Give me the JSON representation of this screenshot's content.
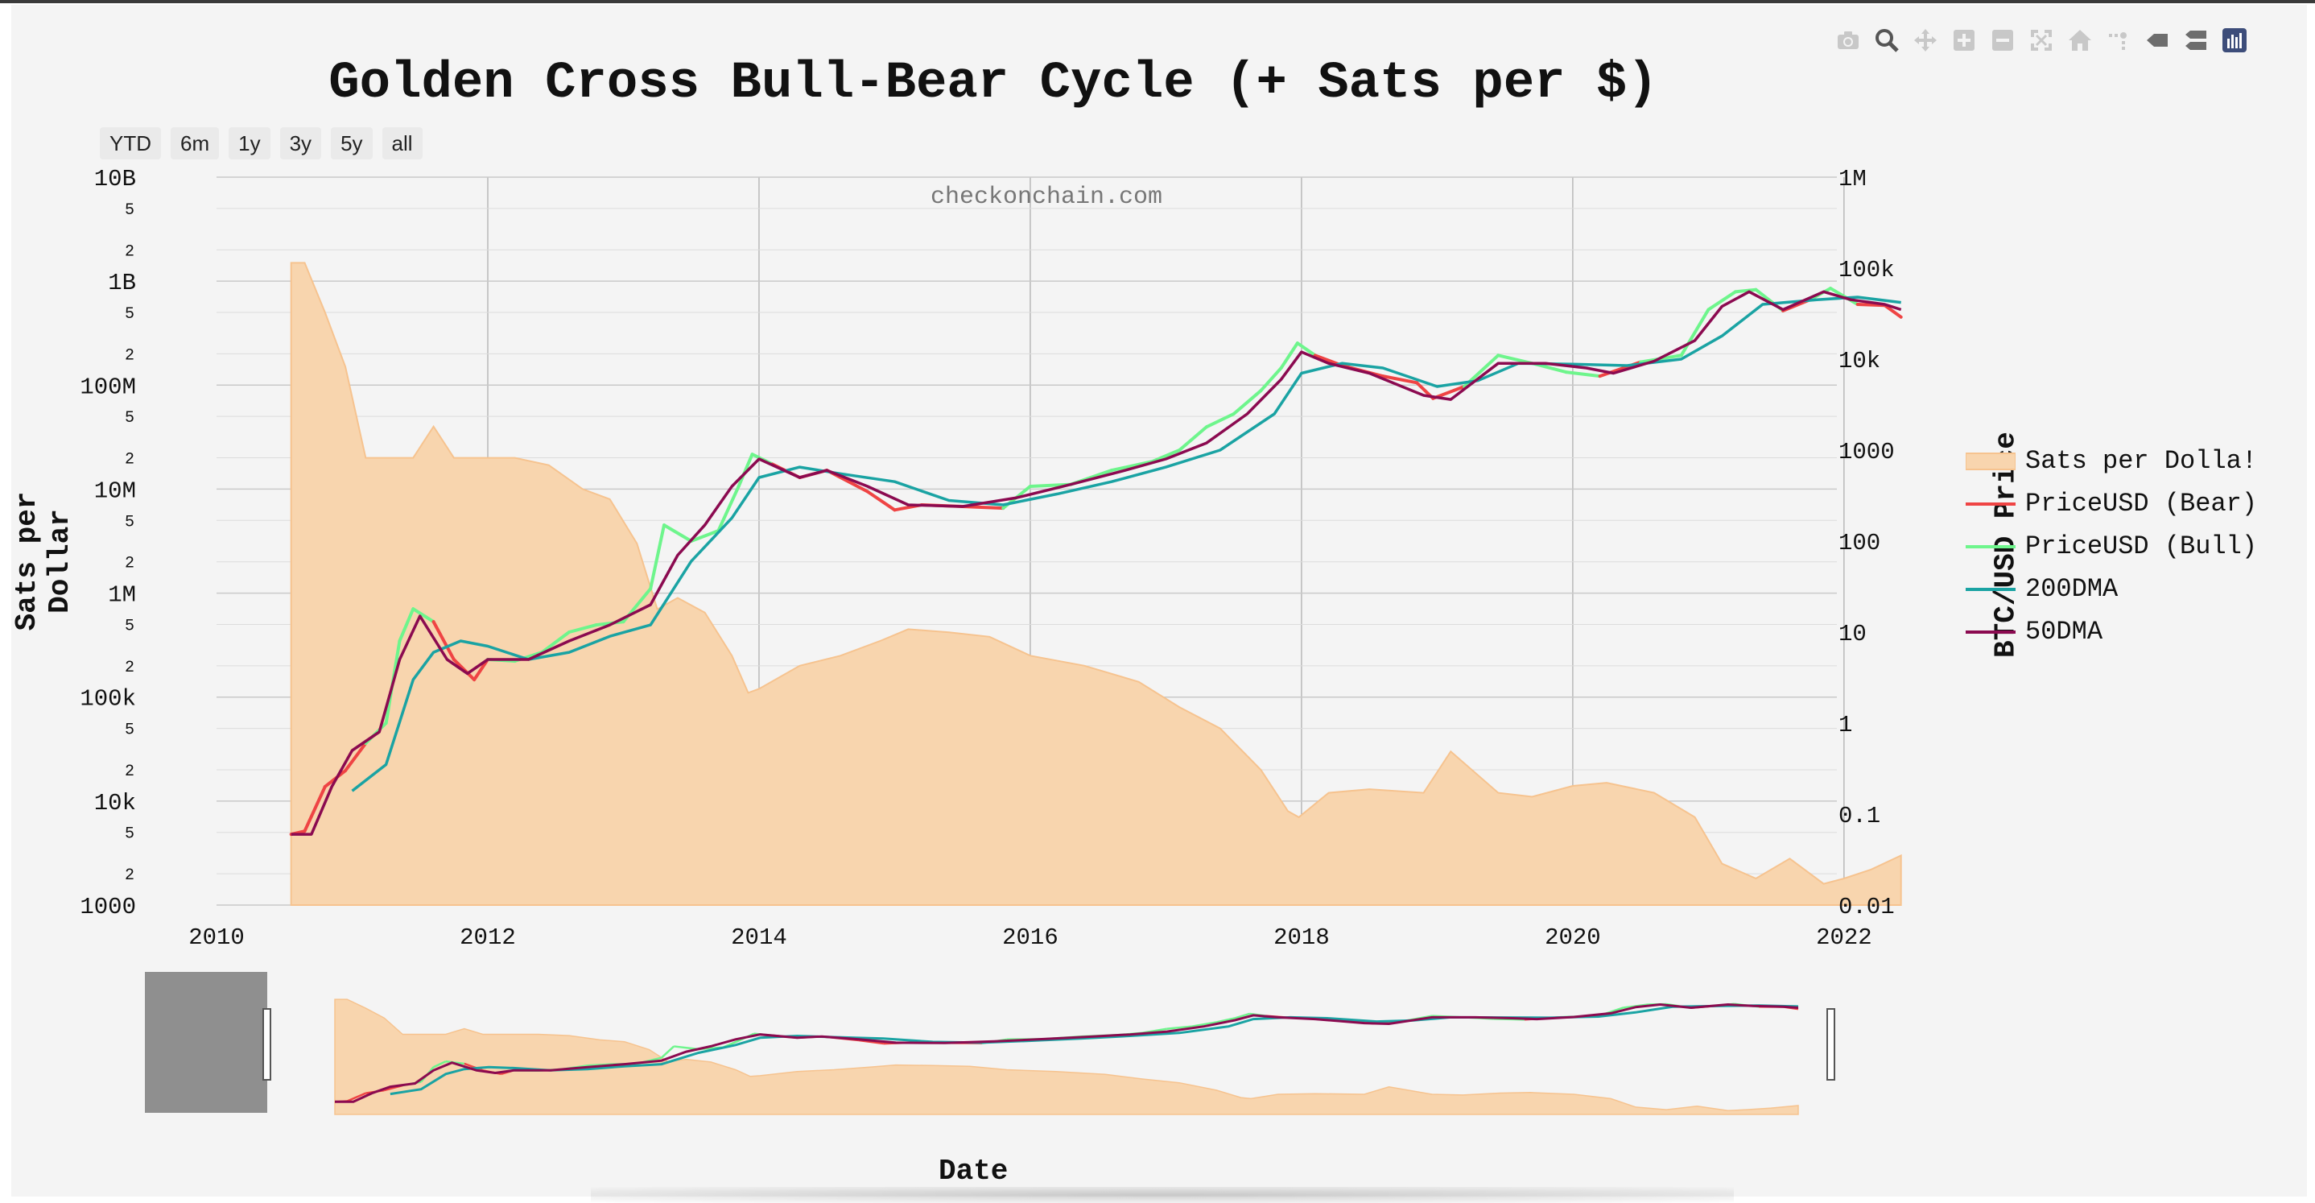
{
  "toolbar": {
    "icons": [
      "camera-icon",
      "zoom-icon",
      "pan-icon",
      "zoom-in-icon",
      "zoom-out-icon",
      "autoscale-icon",
      "reset-axes-icon",
      "spike-lines-icon",
      "hover-closest-icon",
      "hover-compare-icon",
      "plotly-logo-icon"
    ]
  },
  "range_selector": {
    "buttons": [
      "YTD",
      "6m",
      "1y",
      "3y",
      "5y",
      "all"
    ]
  },
  "watermark": "checkonchain.com",
  "colors": {
    "sats_fill": "#f8d5ae",
    "sats_line": "#f6c38f",
    "bear": "#ef4444",
    "bull": "#6ef58c",
    "dma200": "#1aa3a3",
    "dma50": "#8b0a50",
    "grid": "#c9c9c9",
    "background": "#f4f4f4"
  },
  "chart_data": {
    "type": "line",
    "title": "Golden Cross Bull-Bear Cycle (+ Sats per $)",
    "xlabel": "Date",
    "ylabel_left": "Sats per Dollar",
    "ylabel_right": "BTC/USD Price",
    "x_ticks": [
      "2010",
      "2012",
      "2014",
      "2016",
      "2018",
      "2020",
      "2022"
    ],
    "xlim": [
      "2010-01-01",
      "2022-12-31"
    ],
    "y_left": {
      "scale": "log",
      "range": [
        1000,
        10000000000
      ],
      "major_ticks": [
        "1000",
        "10k",
        "100k",
        "1M",
        "10M",
        "100M",
        "1B",
        "10B"
      ],
      "minor_ticks": [
        "2",
        "5"
      ]
    },
    "y_right": {
      "scale": "log",
      "range": [
        0.01,
        1000000
      ],
      "ticks": [
        "0.01",
        "0.1",
        "1",
        "10",
        "100",
        "1000",
        "10k",
        "100k",
        "1M"
      ]
    },
    "legend": [
      "Sats per Dolla!",
      "PriceUSD (Bear)",
      "PriceUSD (Bull)",
      "200DMA",
      "50DMA"
    ],
    "legend_position": "right",
    "grid": true,
    "price": {
      "x": [
        "2010.55",
        "2010.65",
        "2010.8",
        "2010.95",
        "2011.1",
        "2011.25",
        "2011.35",
        "2011.45",
        "2011.6",
        "2011.75",
        "2011.9",
        "2012.0",
        "2012.2",
        "2012.4",
        "2012.6",
        "2012.8",
        "2013.0",
        "2013.2",
        "2013.3",
        "2013.5",
        "2013.7",
        "2013.85",
        "2013.95",
        "2014.1",
        "2014.3",
        "2014.5",
        "2014.8",
        "2015.0",
        "2015.2",
        "2015.5",
        "2015.8",
        "2016.0",
        "2016.3",
        "2016.6",
        "2016.9",
        "2017.1",
        "2017.3",
        "2017.5",
        "2017.7",
        "2017.85",
        "2017.97",
        "2018.1",
        "2018.3",
        "2018.6",
        "2018.85",
        "2018.97",
        "2019.2",
        "2019.45",
        "2019.7",
        "2019.95",
        "2020.2",
        "2020.5",
        "2020.8",
        "2021.0",
        "2021.2",
        "2021.35",
        "2021.55",
        "2021.75",
        "2021.9",
        "2022.1",
        "2022.3",
        "2022.42"
      ],
      "y": [
        0.06,
        0.065,
        0.2,
        0.3,
        0.6,
        1.0,
        8,
        18,
        13,
        5,
        3,
        5,
        4.8,
        6,
        10,
        12,
        13,
        30,
        150,
        100,
        130,
        400,
        900,
        700,
        500,
        600,
        350,
        220,
        250,
        240,
        230,
        400,
        420,
        600,
        750,
        1000,
        1800,
        2500,
        4500,
        8000,
        15000,
        11000,
        8500,
        6500,
        5500,
        3700,
        5000,
        11000,
        9000,
        7200,
        6500,
        9300,
        11000,
        35000,
        55000,
        58000,
        34000,
        45000,
        60000,
        40000,
        39000,
        29000
      ],
      "regime": [
        "bear",
        "bear",
        "bear",
        "bear",
        "bull",
        "bull",
        "bull",
        "bull",
        "bear",
        "bear",
        "bear",
        "bull",
        "bull",
        "bull",
        "bull",
        "bull",
        "bull",
        "bull",
        "bull",
        "bull",
        "bull",
        "bull",
        "bull",
        "bear",
        "bear",
        "bear",
        "bear",
        "bear",
        "bear",
        "bear",
        "bull",
        "bull",
        "bull",
        "bull",
        "bull",
        "bull",
        "bull",
        "bull",
        "bull",
        "bull",
        "bull",
        "bear",
        "bear",
        "bear",
        "bear",
        "bear",
        "bull",
        "bull",
        "bull",
        "bull",
        "bear",
        "bull",
        "bull",
        "bull",
        "bull",
        "bull",
        "bear",
        "bull",
        "bull",
        "bear",
        "bear",
        "bear"
      ]
    },
    "series": [
      {
        "name": "Sats per Dolla!",
        "axis": "left",
        "x": [
          2010.55,
          2010.65,
          2010.8,
          2010.95,
          2011.1,
          2011.3,
          2011.45,
          2011.6,
          2011.75,
          2011.95,
          2012.2,
          2012.45,
          2012.7,
          2012.9,
          2013.1,
          2013.25,
          2013.4,
          2013.6,
          2013.8,
          2013.92,
          2014.0,
          2014.3,
          2014.6,
          2014.9,
          2015.1,
          2015.4,
          2015.7,
          2016.0,
          2016.4,
          2016.8,
          2017.1,
          2017.4,
          2017.7,
          2017.9,
          2017.98,
          2018.2,
          2018.5,
          2018.9,
          2019.1,
          2019.45,
          2019.7,
          2020.0,
          2020.25,
          2020.6,
          2020.9,
          2021.1,
          2021.35,
          2021.6,
          2021.85,
          2022.0,
          2022.2,
          2022.42
        ],
        "y": [
          1500000000,
          1500000000,
          500000000,
          150000000,
          20000000,
          20000000,
          20000000,
          40000000,
          20000000,
          20000000,
          20000000,
          17000000,
          10000000,
          8000000,
          3000000,
          700000,
          900000,
          650000,
          250000,
          110000,
          120000,
          200000,
          250000,
          350000,
          450000,
          420000,
          380000,
          250000,
          200000,
          140000,
          80000,
          50000,
          20000,
          8000,
          7000,
          12000,
          13000,
          12000,
          30000,
          12000,
          11000,
          14000,
          15000,
          12000,
          7000,
          2500,
          1800,
          2800,
          1600,
          1800,
          2200,
          3000
        ]
      },
      {
        "name": "200DMA",
        "axis": "right",
        "x": [
          2011.0,
          2011.25,
          2011.45,
          2011.6,
          2011.8,
          2012.0,
          2012.3,
          2012.6,
          2012.9,
          2013.2,
          2013.5,
          2013.8,
          2014.0,
          2014.3,
          2014.6,
          2015.0,
          2015.4,
          2015.8,
          2016.2,
          2016.6,
          2017.0,
          2017.4,
          2017.8,
          2018.0,
          2018.3,
          2018.6,
          2019.0,
          2019.3,
          2019.6,
          2020.0,
          2020.4,
          2020.8,
          2021.1,
          2021.4,
          2021.8,
          2022.1,
          2022.42
        ],
        "y": [
          0.18,
          0.35,
          3,
          6,
          8,
          7,
          5,
          6,
          9,
          12,
          60,
          180,
          500,
          650,
          550,
          450,
          280,
          250,
          330,
          450,
          650,
          1000,
          2500,
          7000,
          9000,
          8000,
          5000,
          5800,
          9000,
          8800,
          8500,
          10000,
          18000,
          40000,
          45000,
          48000,
          42000
        ]
      },
      {
        "name": "50DMA",
        "axis": "right",
        "x": [
          2010.55,
          2010.7,
          2010.85,
          2011.0,
          2011.2,
          2011.35,
          2011.5,
          2011.7,
          2011.85,
          2012.0,
          2012.3,
          2012.6,
          2012.9,
          2013.2,
          2013.4,
          2013.6,
          2013.8,
          2014.0,
          2014.3,
          2014.5,
          2014.8,
          2015.1,
          2015.5,
          2015.9,
          2016.3,
          2016.7,
          2017.0,
          2017.3,
          2017.6,
          2017.85,
          2018.0,
          2018.2,
          2018.5,
          2018.9,
          2019.1,
          2019.45,
          2019.8,
          2020.1,
          2020.3,
          2020.6,
          2020.9,
          2021.1,
          2021.3,
          2021.55,
          2021.85,
          2022.05,
          2022.3,
          2022.42
        ],
        "y": [
          0.06,
          0.06,
          0.2,
          0.5,
          0.8,
          5,
          15,
          5,
          3.5,
          5,
          5,
          8,
          12,
          20,
          70,
          150,
          400,
          800,
          500,
          600,
          400,
          250,
          240,
          300,
          420,
          600,
          800,
          1200,
          2500,
          6000,
          12000,
          9000,
          7000,
          4000,
          3600,
          9000,
          9000,
          8000,
          7000,
          9500,
          16000,
          38000,
          55000,
          35000,
          55000,
          45000,
          40000,
          35000
        ]
      }
    ]
  }
}
